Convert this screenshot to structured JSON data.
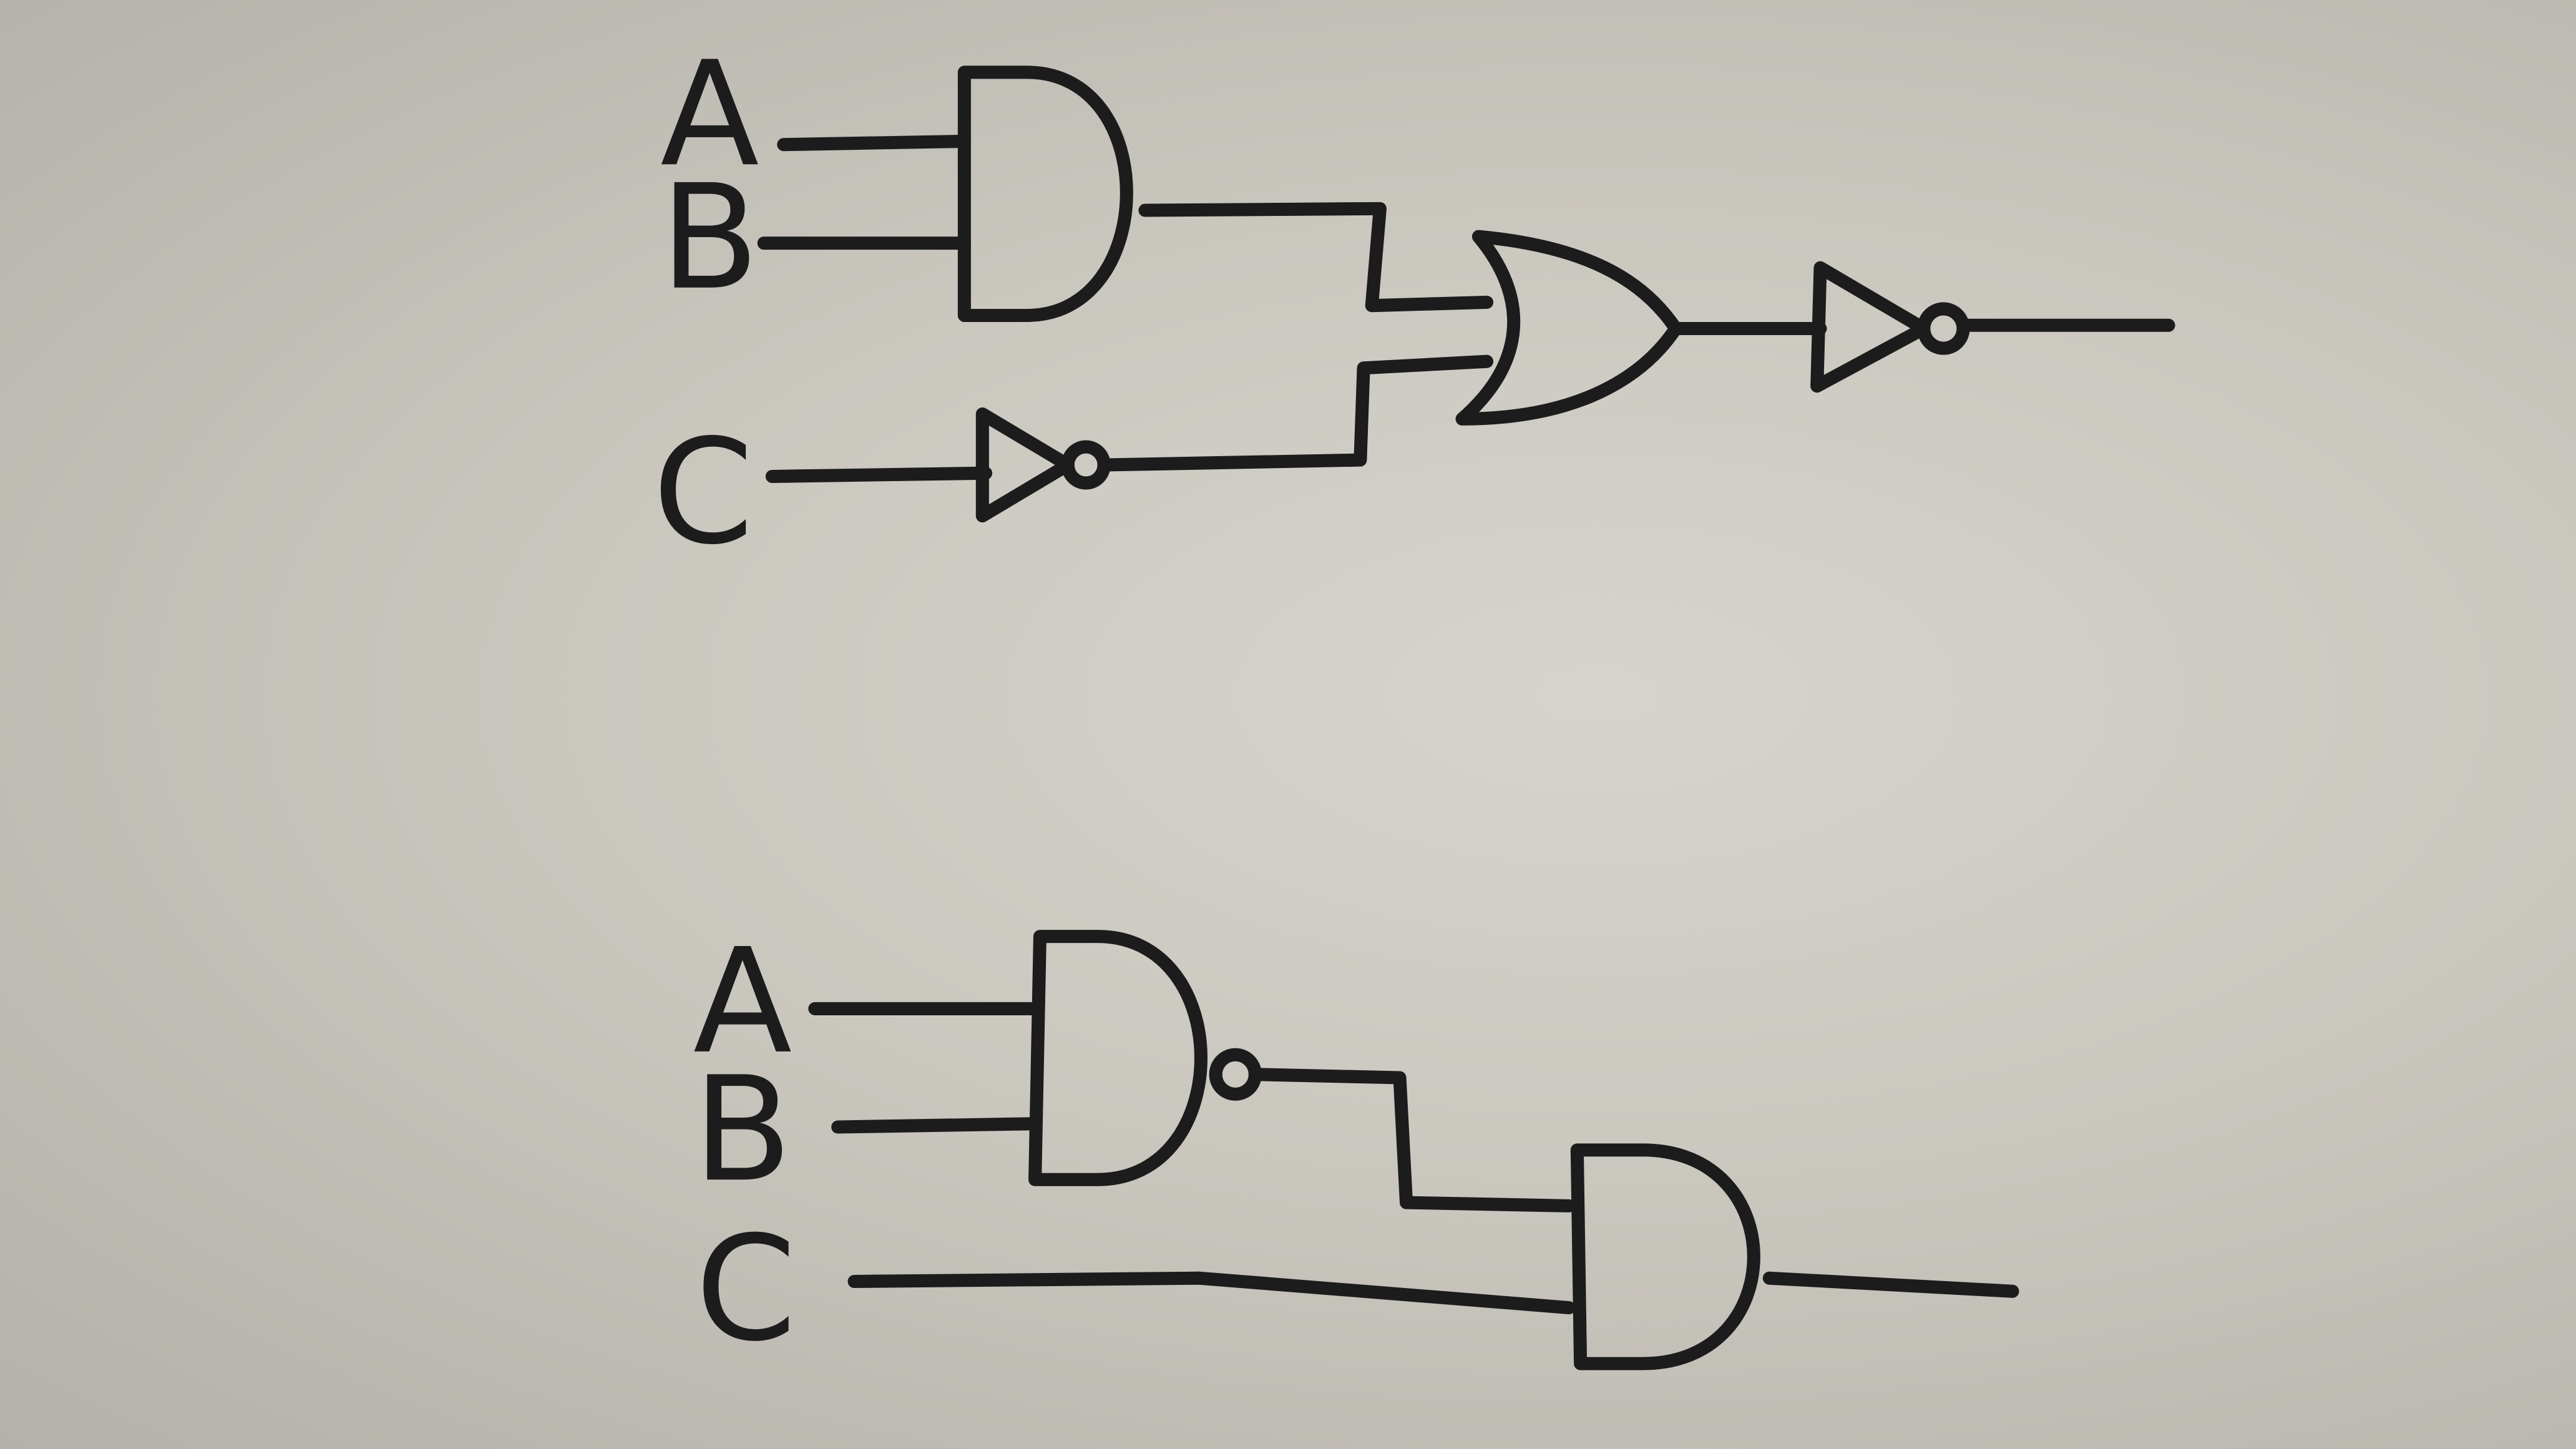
{
  "diagram_data": {
    "circuits": [
      {
        "inputs": [
          "A",
          "B",
          "C"
        ],
        "gates": [
          "and",
          "not",
          "or",
          "not"
        ]
      },
      {
        "inputs": [
          "A",
          "B",
          "C"
        ],
        "gates": [
          "nand",
          "and"
        ]
      }
    ],
    "colors": {
      "ink": "#1c1c1c",
      "paper": "#cac7bf"
    }
  }
}
